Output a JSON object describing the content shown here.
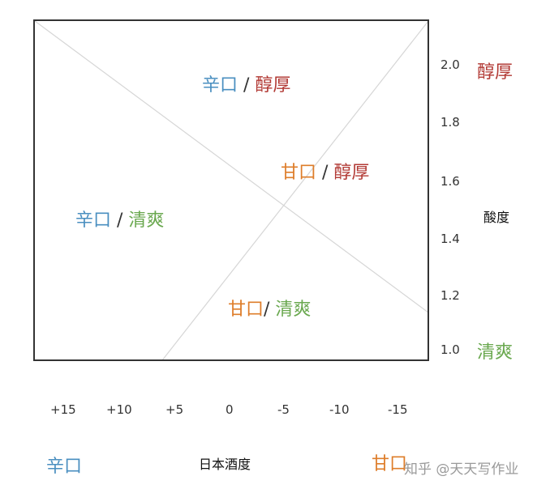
{
  "colors": {
    "karakuchi": "#4a8fc0",
    "amakuchi": "#de7d2a",
    "junkou": "#b23a35",
    "seisou": "#6aa84f",
    "diagonal": "#d6d6d6",
    "frame": "#333333"
  },
  "quadrants": {
    "top": {
      "taste": "辛口",
      "sep": " / ",
      "body": "醇厚"
    },
    "right": {
      "taste": "甘口",
      "sep": " / ",
      "body": "醇厚"
    },
    "left": {
      "taste": "辛口",
      "sep": " / ",
      "body": "清爽"
    },
    "bottom": {
      "taste": "甘口",
      "sep": "/ ",
      "body": "清爽"
    }
  },
  "y_axis": {
    "title": "酸度",
    "ticks": [
      "2.0",
      "1.8",
      "1.6",
      "1.4",
      "1.2",
      "1.0"
    ],
    "top_label": "醇厚",
    "bottom_label": "清爽"
  },
  "x_axis": {
    "title": "日本酒度",
    "ticks": [
      "+15",
      "+10",
      "+5",
      "0",
      "-5",
      "-10",
      "-15"
    ],
    "left_label": "辛口",
    "right_label": "甘口"
  },
  "watermark": "知乎 @天天写作业"
}
